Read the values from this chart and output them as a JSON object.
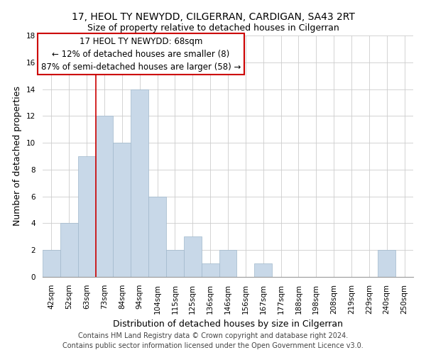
{
  "title": "17, HEOL TY NEWYDD, CILGERRAN, CARDIGAN, SA43 2RT",
  "subtitle": "Size of property relative to detached houses in Cilgerran",
  "xlabel": "Distribution of detached houses by size in Cilgerran",
  "ylabel": "Number of detached properties",
  "bar_labels": [
    "42sqm",
    "52sqm",
    "63sqm",
    "73sqm",
    "84sqm",
    "94sqm",
    "104sqm",
    "115sqm",
    "125sqm",
    "136sqm",
    "146sqm",
    "156sqm",
    "167sqm",
    "177sqm",
    "188sqm",
    "198sqm",
    "208sqm",
    "219sqm",
    "229sqm",
    "240sqm",
    "250sqm"
  ],
  "bar_values": [
    2,
    4,
    9,
    12,
    10,
    14,
    6,
    2,
    3,
    1,
    2,
    0,
    1,
    0,
    0,
    0,
    0,
    0,
    0,
    2,
    0
  ],
  "bar_color": "#c8d8e8",
  "bar_edge_color": "#a0b8cc",
  "vline_color": "#cc0000",
  "vline_x_index": 2.5,
  "annotation_line1": "17 HEOL TY NEWYDD: 68sqm",
  "annotation_line2": "← 12% of detached houses are smaller (8)",
  "annotation_line3": "87% of semi-detached houses are larger (58) →",
  "annotation_box_color": "#ffffff",
  "annotation_box_edge_color": "#cc0000",
  "ylim": [
    0,
    18
  ],
  "yticks": [
    0,
    2,
    4,
    6,
    8,
    10,
    12,
    14,
    16,
    18
  ],
  "footer_line1": "Contains HM Land Registry data © Crown copyright and database right 2024.",
  "footer_line2": "Contains public sector information licensed under the Open Government Licence v3.0.",
  "title_fontsize": 10,
  "subtitle_fontsize": 9,
  "axis_label_fontsize": 9,
  "tick_fontsize": 7.5,
  "annotation_fontsize": 8.5,
  "footer_fontsize": 7,
  "grid_color": "#cccccc",
  "background_color": "#ffffff"
}
